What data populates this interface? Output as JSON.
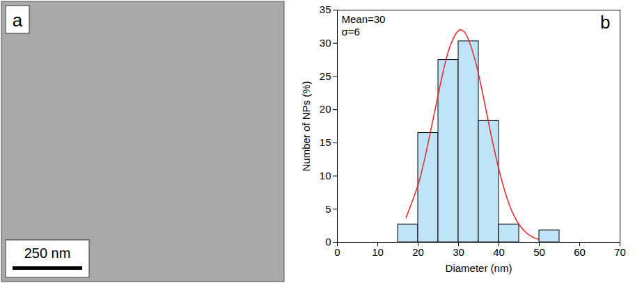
{
  "chart_data": {
    "type": "histogram",
    "panel_label": "b",
    "x_label": "Diameter (nm)",
    "y_label": "Number of NPs (%)",
    "annotations": [
      "Mean=30",
      "σ=6"
    ],
    "bins": [
      15,
      20,
      25,
      30,
      35,
      40,
      45,
      50,
      55
    ],
    "values": [
      2.7,
      16.5,
      27.5,
      30.3,
      18.3,
      2.7,
      0,
      1.8
    ],
    "color": "#bfe4f7",
    "fit_curve": {
      "type": "line",
      "color": "#e8262a",
      "x": [
        17,
        20,
        22,
        24,
        26,
        28,
        30,
        31,
        32,
        34,
        36,
        38,
        40,
        42,
        44,
        46,
        48,
        50
      ],
      "values": [
        3.7,
        8.7,
        13.6,
        19.4,
        25.2,
        29.7,
        31.9,
        31.9,
        31.2,
        27.7,
        22.4,
        16.4,
        11.0,
        6.7,
        3.7,
        1.9,
        0.9,
        0.4
      ]
    },
    "xlim": [
      0,
      70
    ],
    "xticks": [
      0,
      10,
      20,
      30,
      40,
      50,
      60,
      70
    ],
    "ylim": [
      0,
      35
    ],
    "yticks": [
      0,
      5,
      10,
      15,
      20,
      25,
      30,
      35
    ],
    "grid": false
  },
  "image_panel": {
    "panel_label": "a",
    "scale_bar": "250 nm"
  }
}
